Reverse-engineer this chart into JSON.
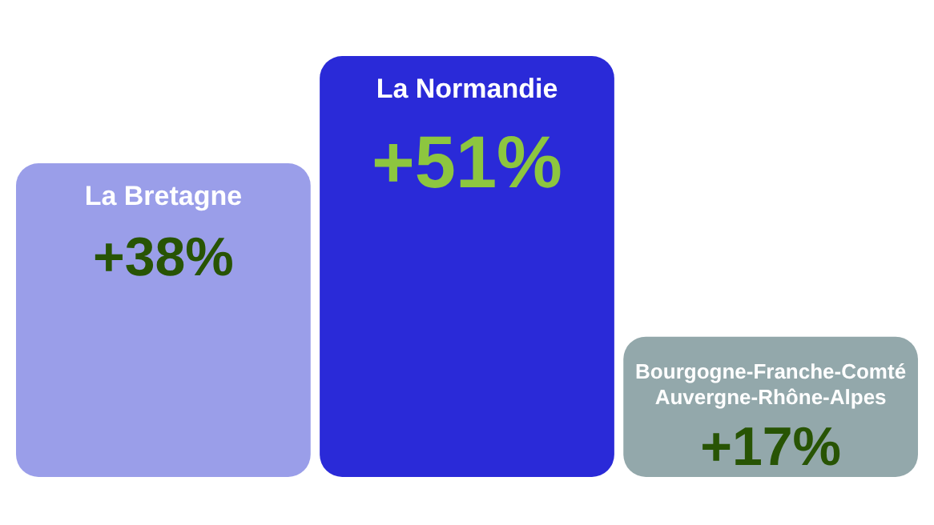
{
  "chart_data": {
    "type": "bar",
    "categories": [
      "La Bretagne",
      "La Normandie",
      "Bourgogne-Franche-Comté\nAuvergne-Rhône-Alpes"
    ],
    "values": [
      38,
      51,
      17
    ],
    "colors": [
      "#9a9ee9",
      "#2a2ad8",
      "#93a8ab"
    ],
    "value_labels": [
      "+38%",
      "+51%",
      "+17%"
    ]
  }
}
